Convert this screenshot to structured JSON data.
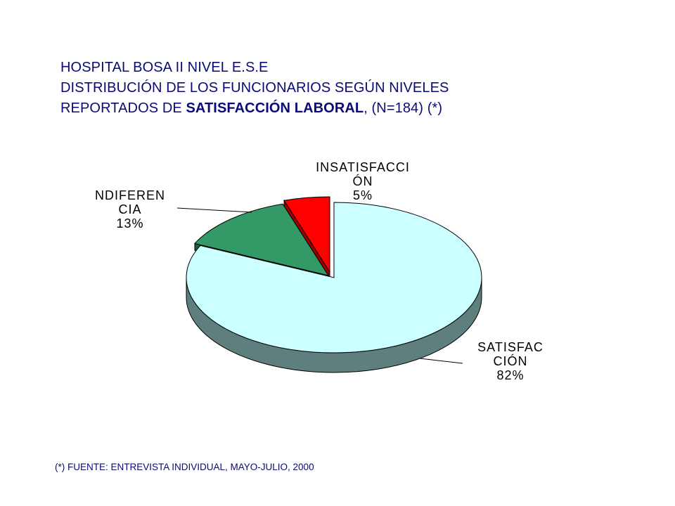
{
  "title": {
    "line1": "HOSPITAL BOSA II NIVEL E.S.E",
    "line2": "DISTRIBUCIÓN DE LOS FUNCIONARIOS SEGÚN NIVELES",
    "line3_prefix": "REPORTADOS DE ",
    "line3_bold": "SATISFACCIÓN LABORAL",
    "line3_suffix": ",  (N=184) (*)"
  },
  "footnote": "(*) FUENTE: ENTREVISTA INDIVIDUAL, MAYO-JULIO, 2000",
  "chart_data": {
    "type": "pie",
    "title": "HOSPITAL BOSA II NIVEL E.S.E DISTRIBUCIÓN DE LOS FUNCIONARIOS SEGÚN NIVELES REPORTADOS DE SATISFACCIÓN LABORAL, (N=184) (*)",
    "style": "3d-exploded",
    "slices": [
      {
        "label_lines": [
          "SATISFAC",
          "CIÓN",
          "82%"
        ],
        "value": 82,
        "color": "#ccffff",
        "side_color": "#5f7f7f"
      },
      {
        "label_lines": [
          "NDIFEREN",
          "CIA",
          "13%"
        ],
        "value": 13,
        "color": "#339966",
        "side_color": "#1f5c3d"
      },
      {
        "label_lines": [
          "INSATISFACCI",
          "ÓN",
          "5%"
        ],
        "value": 5,
        "color": "#ff0000",
        "side_color": "#9a0000"
      }
    ]
  }
}
